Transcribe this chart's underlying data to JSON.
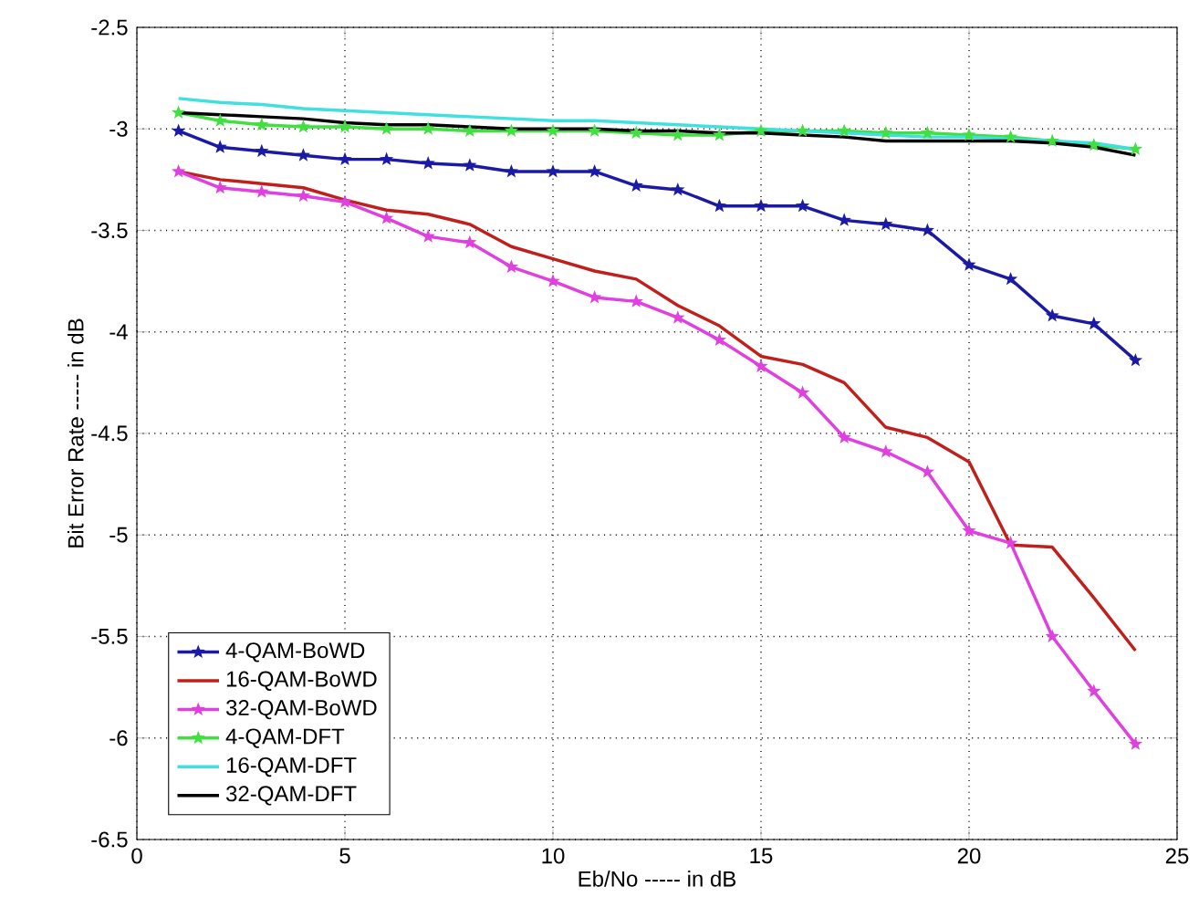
{
  "chart_data": {
    "type": "line",
    "xlabel": "Eb/No ----- in dB",
    "ylabel": "Bit Error Rate ----- in dB",
    "x": [
      1,
      2,
      3,
      4,
      5,
      6,
      7,
      8,
      9,
      10,
      11,
      12,
      13,
      14,
      15,
      16,
      17,
      18,
      19,
      20,
      21,
      22,
      23,
      24
    ],
    "xlim": [
      0,
      25
    ],
    "xticks": [
      0,
      5,
      10,
      15,
      20,
      25
    ],
    "ylim": [
      -6.5,
      -2.5
    ],
    "yticks": [
      -6.5,
      -6,
      -5.5,
      -5,
      -4.5,
      -4,
      -3.5,
      -3,
      -2.5
    ],
    "grid": true,
    "legend": "bottom left",
    "series": [
      {
        "name": "4-QAM-BoWD",
        "color": "#1a1aa6",
        "marker": "star",
        "values": [
          -3.01,
          -3.09,
          -3.11,
          -3.13,
          -3.15,
          -3.15,
          -3.17,
          -3.18,
          -3.21,
          -3.21,
          -3.21,
          -3.28,
          -3.3,
          -3.38,
          -3.38,
          -3.38,
          -3.45,
          -3.47,
          -3.5,
          -3.67,
          -3.74,
          -3.92,
          -3.96,
          -4.14
        ]
      },
      {
        "name": "16-QAM-BoWD",
        "color": "#c0201c",
        "marker": "none",
        "values": [
          -3.21,
          -3.25,
          -3.27,
          -3.29,
          -3.35,
          -3.4,
          -3.42,
          -3.47,
          -3.58,
          -3.64,
          -3.7,
          -3.74,
          -3.87,
          -3.97,
          -4.12,
          -4.16,
          -4.25,
          -4.47,
          -4.52,
          -4.64,
          -5.05,
          -5.06,
          -5.31,
          -5.57
        ]
      },
      {
        "name": "32-QAM-BoWD",
        "color": "#e040e0",
        "marker": "star",
        "values": [
          -3.21,
          -3.29,
          -3.31,
          -3.33,
          -3.36,
          -3.44,
          -3.53,
          -3.56,
          -3.68,
          -3.75,
          -3.83,
          -3.85,
          -3.93,
          -4.04,
          -4.17,
          -4.3,
          -4.52,
          -4.59,
          -4.69,
          -4.98,
          -5.04,
          -5.5,
          -5.77,
          -6.03
        ]
      },
      {
        "name": "4-QAM-DFT",
        "color": "#40e040",
        "marker": "star",
        "values": [
          -2.92,
          -2.96,
          -2.98,
          -2.99,
          -2.99,
          -3.0,
          -3.0,
          -3.01,
          -3.01,
          -3.01,
          -3.01,
          -3.02,
          -3.03,
          -3.03,
          -3.01,
          -3.01,
          -3.01,
          -3.02,
          -3.02,
          -3.03,
          -3.04,
          -3.06,
          -3.08,
          -3.1
        ]
      },
      {
        "name": "16-QAM-DFT",
        "color": "#40e0e0",
        "marker": "none",
        "values": [
          -2.85,
          -2.87,
          -2.88,
          -2.9,
          -2.91,
          -2.92,
          -2.93,
          -2.94,
          -2.95,
          -2.96,
          -2.96,
          -2.97,
          -2.98,
          -2.99,
          -3.0,
          -3.01,
          -3.02,
          -3.03,
          -3.04,
          -3.04,
          -3.05,
          -3.06,
          -3.07,
          -3.1
        ]
      },
      {
        "name": "32-QAM-DFT",
        "color": "#000000",
        "marker": "none",
        "values": [
          -2.92,
          -2.93,
          -2.94,
          -2.95,
          -2.97,
          -2.98,
          -2.98,
          -2.99,
          -3.0,
          -3.0,
          -3.0,
          -3.01,
          -3.01,
          -3.02,
          -3.02,
          -3.03,
          -3.04,
          -3.06,
          -3.06,
          -3.06,
          -3.06,
          -3.07,
          -3.09,
          -3.13
        ]
      }
    ]
  }
}
